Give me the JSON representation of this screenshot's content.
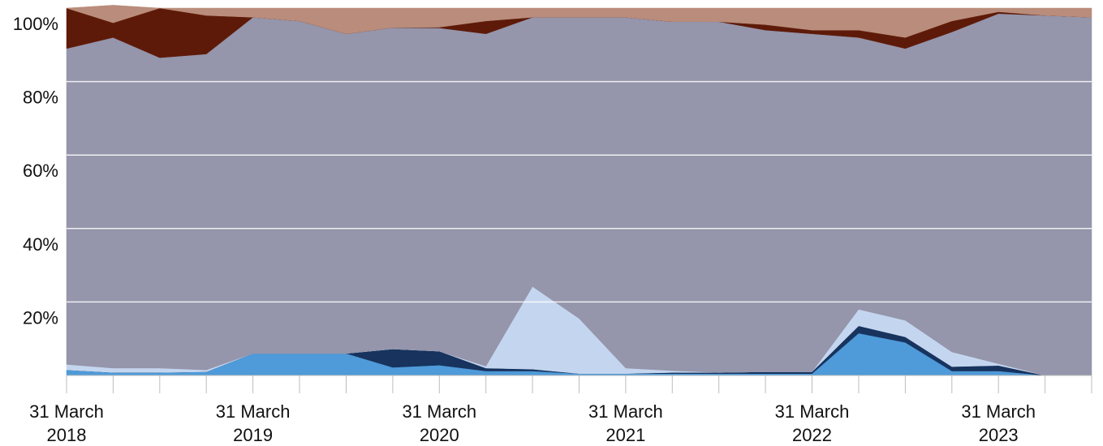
{
  "chart_data": {
    "type": "area",
    "stacked": true,
    "normalized_percent": true,
    "x": [
      "2018-03-31",
      "2018-06-30",
      "2018-09-30",
      "2018-12-31",
      "2019-03-31",
      "2019-06-30",
      "2019-09-30",
      "2019-12-31",
      "2020-03-31",
      "2020-06-30",
      "2020-09-30",
      "2020-12-31",
      "2021-03-31",
      "2021-06-30",
      "2021-09-30",
      "2021-12-31",
      "2022-03-31",
      "2022-06-30",
      "2022-09-30",
      "2022-12-31",
      "2023-03-31",
      "2023-06-30",
      "2023-09-30"
    ],
    "x_tick_labels": [
      {
        "x": "2018-03-31",
        "line1": "31 March",
        "line2": "2018"
      },
      {
        "x": "2019-03-31",
        "line1": "31 March",
        "line2": "2019"
      },
      {
        "x": "2020-03-31",
        "line1": "31 March",
        "line2": "2020"
      },
      {
        "x": "2021-03-31",
        "line1": "31 March",
        "line2": "2021"
      },
      {
        "x": "2022-03-31",
        "line1": "31 March",
        "line2": "2022"
      },
      {
        "x": "2023-03-31",
        "line1": "31 March",
        "line2": "2023"
      }
    ],
    "y_ticks": [
      "20%",
      "40%",
      "60%",
      "80%",
      "100%"
    ],
    "ylim": [
      0,
      100
    ],
    "grid": true,
    "title": "",
    "xlabel": "",
    "ylabel": "",
    "series": [
      {
        "color": "#4f9ad8",
        "values": [
          1.5,
          0.8,
          0.8,
          1.0,
          6.0,
          6.0,
          6.0,
          2.2,
          2.8,
          1.2,
          1.2,
          0.5,
          0.5,
          0.5,
          0.5,
          0.5,
          0.5,
          11.5,
          9.0,
          1.2,
          1.2,
          0.0,
          0.0
        ]
      },
      {
        "color": "#17335e",
        "values": [
          0.0,
          0.0,
          0.0,
          0.0,
          0.0,
          0.0,
          0.0,
          5.0,
          3.8,
          0.8,
          0.5,
          0.0,
          0.0,
          0.3,
          0.3,
          0.5,
          0.5,
          2.0,
          1.5,
          1.2,
          1.5,
          0.0,
          0.0
        ]
      },
      {
        "color": "#c4d6ef",
        "values": [
          1.5,
          1.2,
          1.2,
          0.5,
          0.0,
          0.0,
          0.0,
          0.0,
          0.0,
          0.5,
          22.5,
          15.0,
          1.5,
          0.5,
          0.0,
          0.0,
          0.0,
          4.5,
          4.5,
          4.0,
          0.5,
          0.0,
          0.0
        ]
      },
      {
        "color": "#9595ab",
        "values": [
          86.0,
          90.0,
          84.5,
          86.0,
          91.5,
          90.5,
          87.0,
          87.5,
          88.0,
          90.5,
          73.3,
          82.0,
          95.5,
          95.0,
          95.5,
          93.0,
          92.0,
          74.0,
          74.0,
          87.1,
          95.3,
          98.0,
          97.5
        ]
      },
      {
        "color": "#5e1a08",
        "values": [
          11.0,
          4.0,
          13.5,
          10.5,
          0.0,
          0.0,
          0.0,
          0.0,
          0.2,
          3.5,
          0.0,
          0.0,
          0.0,
          0.0,
          0.0,
          1.5,
          1.0,
          2.0,
          3.0,
          3.0,
          0.5,
          0.0,
          0.0
        ]
      },
      {
        "color": "#b98c7b",
        "values": [
          0.0,
          4.8,
          0.0,
          2.0,
          2.5,
          3.5,
          7.0,
          5.3,
          5.2,
          3.5,
          2.5,
          2.5,
          2.5,
          3.7,
          3.7,
          4.5,
          6.0,
          6.0,
          8.0,
          3.5,
          1.0,
          2.0,
          2.5
        ]
      }
    ]
  }
}
